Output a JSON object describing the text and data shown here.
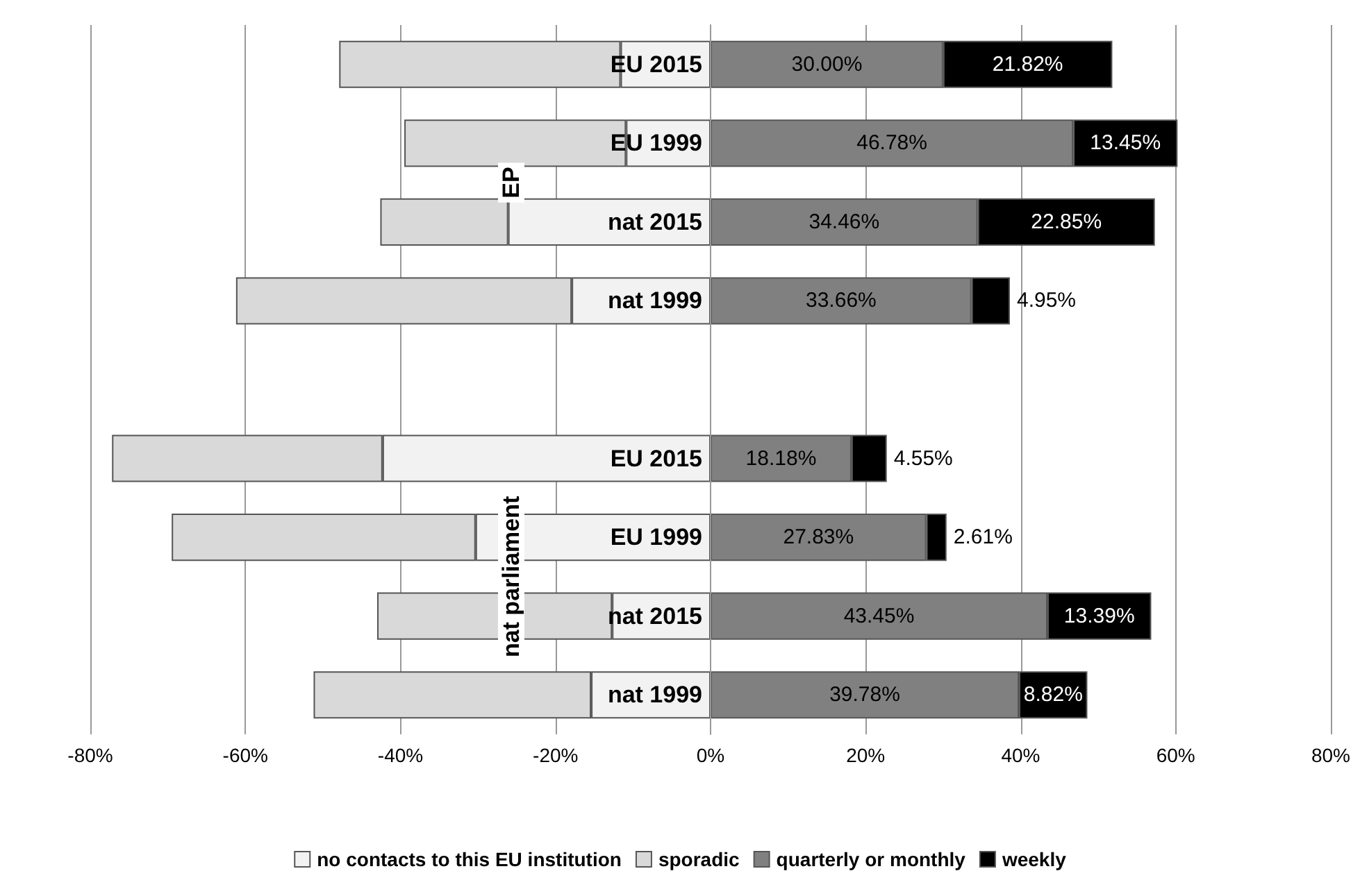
{
  "chart_data": {
    "type": "bar",
    "orientation": "horizontal",
    "stacked": true,
    "categories": [
      "EU 2015",
      "EU 1999",
      "nat 2015",
      "nat 1999",
      null,
      "EU 2015",
      "EU 1999",
      "nat 2015",
      "nat 1999"
    ],
    "series": [
      {
        "name": "no contacts to this EU institution",
        "color": "#f2f2f2",
        "values": [
          -11.6,
          -10.9,
          -26.1,
          -17.9,
          null,
          -42.3,
          -30.3,
          -12.7,
          -15.4
        ]
      },
      {
        "name": "sporadic",
        "color": "#d9d9d9",
        "values": [
          -36.3,
          -28.6,
          -16.5,
          -43.3,
          null,
          -34.9,
          -39.2,
          -30.3,
          -35.8
        ]
      },
      {
        "name": "quarterly or monthly",
        "color": "#808080",
        "values": [
          30.0,
          46.78,
          34.46,
          33.66,
          null,
          18.18,
          27.83,
          43.45,
          39.78
        ],
        "value_labels": [
          "30.00%",
          "46.78%",
          "34.46%",
          "33.66%",
          null,
          "18.18%",
          "27.83%",
          "43.45%",
          "39.78%"
        ]
      },
      {
        "name": "weekly",
        "color": "#000000",
        "values": [
          21.82,
          13.45,
          22.85,
          4.95,
          null,
          4.55,
          2.61,
          13.39,
          8.82
        ],
        "value_labels": [
          "21.82%",
          "13.45%",
          "22.85%",
          "4.95%",
          null,
          "4.55%",
          "2.61%",
          "13.39%",
          "8.82%"
        ]
      }
    ],
    "xlim": [
      -80,
      80
    ],
    "xticks": [
      {
        "value": -80,
        "label": "-80%"
      },
      {
        "value": -60,
        "label": "-60%"
      },
      {
        "value": -40,
        "label": "-40%"
      },
      {
        "value": -20,
        "label": "-20%"
      },
      {
        "value": 0,
        "label": "0%"
      },
      {
        "value": 20,
        "label": "20%"
      },
      {
        "value": 40,
        "label": "40%"
      },
      {
        "value": 60,
        "label": "60%"
      },
      {
        "value": 80,
        "label": "80%"
      }
    ],
    "annotations": [
      "EP",
      "nat parliament"
    ],
    "grid": "x",
    "legend": "bottom"
  }
}
